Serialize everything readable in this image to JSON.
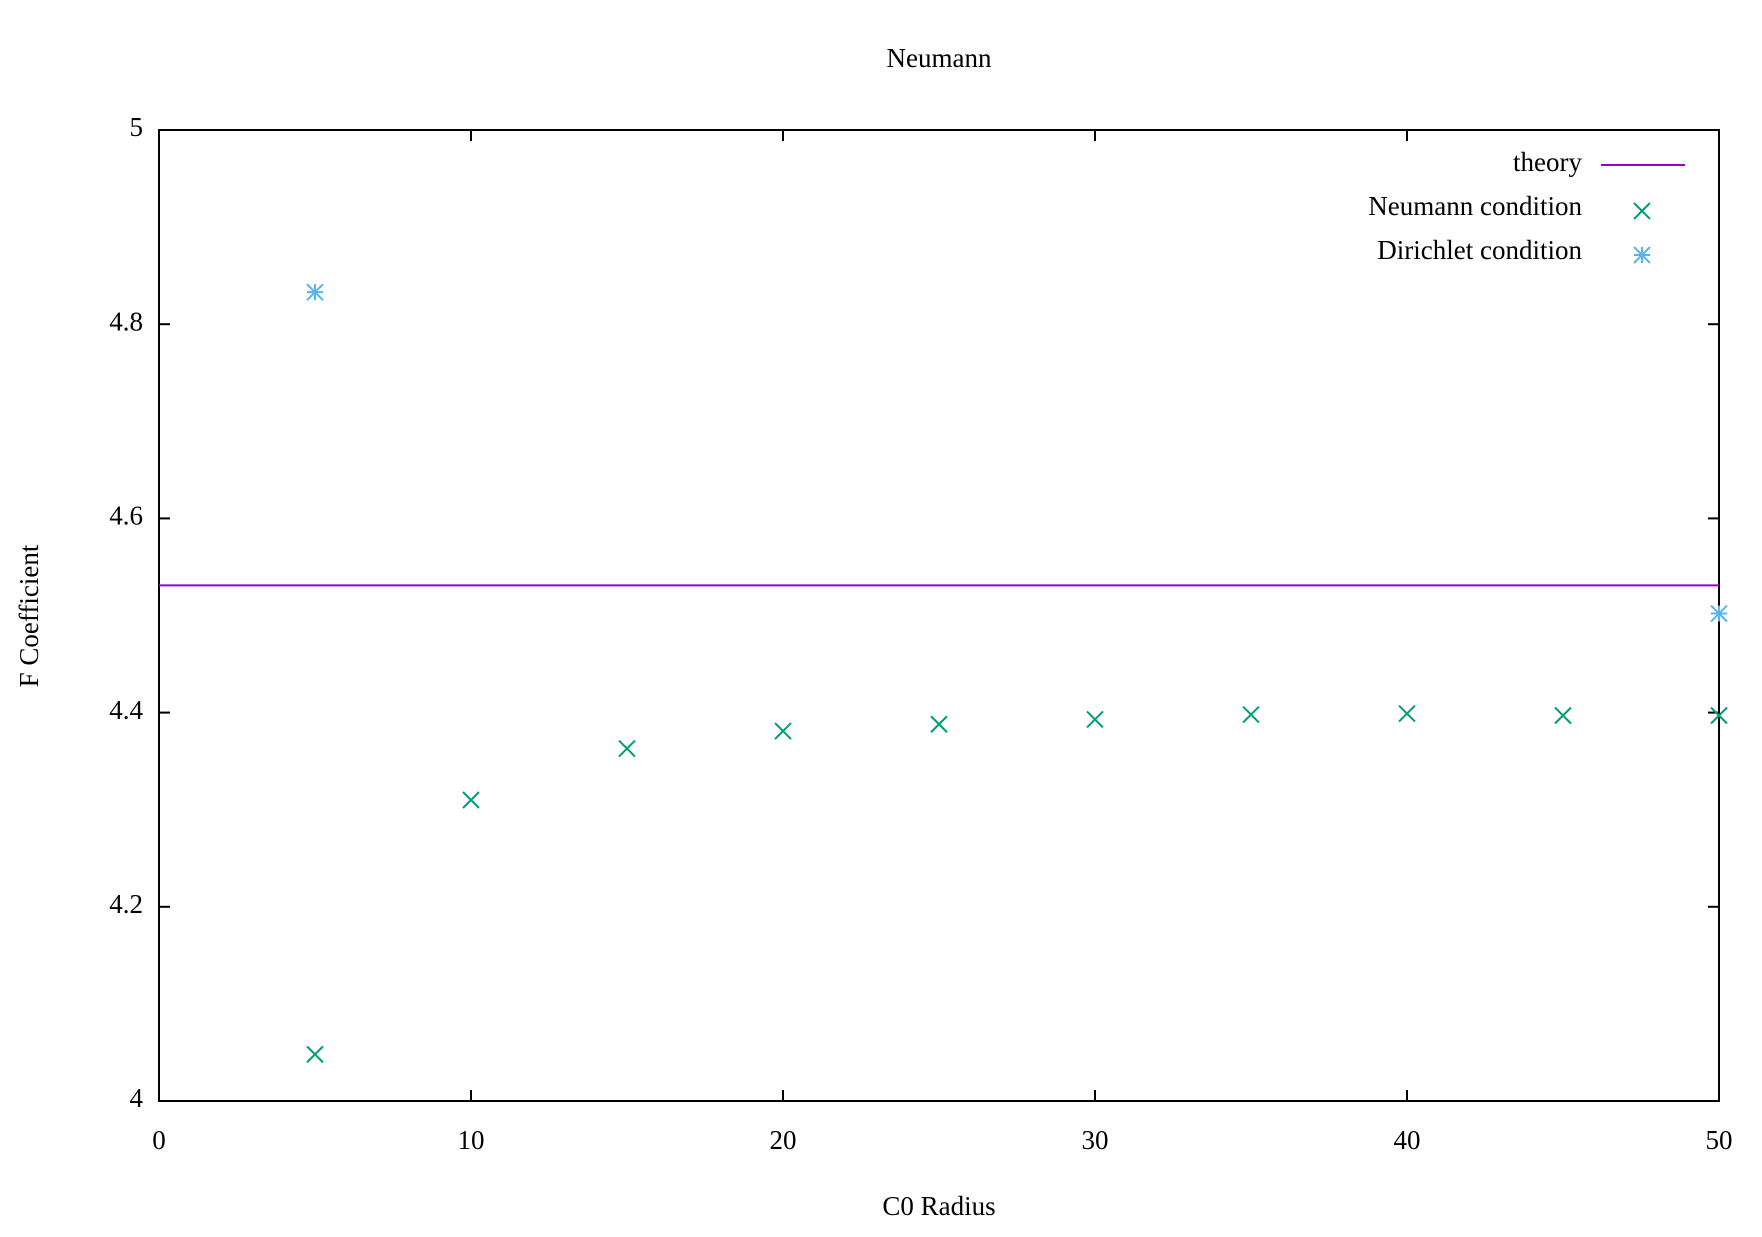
{
  "chart_data": {
    "type": "scatter",
    "title": "Neumann",
    "x_label": "C0 Radius",
    "y_label": "F Coefficient",
    "xlim": [
      0,
      50
    ],
    "xticks": [
      0,
      10,
      20,
      30,
      40,
      50
    ],
    "ylim": [
      4,
      5
    ],
    "yticks": [
      4,
      4.2,
      4.4,
      4.6,
      4.8,
      5
    ],
    "legend": "top-right",
    "series": [
      {
        "name": "theory",
        "color": "#9400d3",
        "style": "line",
        "x": [
          0,
          50
        ],
        "values": [
          4.531,
          4.531
        ]
      },
      {
        "name": "Neumann condition",
        "color": "#009e73",
        "style": "cross",
        "x": [
          5,
          10,
          15,
          20,
          25,
          30,
          35,
          40,
          45,
          50
        ],
        "values": [
          4.048,
          4.31,
          4.363,
          4.381,
          4.388,
          4.393,
          4.398,
          4.399,
          4.397,
          4.397
        ]
      },
      {
        "name": "Dirichlet condition",
        "color": "#56b4e9",
        "style": "star",
        "x": [
          5,
          50
        ],
        "values": [
          4.833,
          4.502
        ]
      }
    ]
  }
}
